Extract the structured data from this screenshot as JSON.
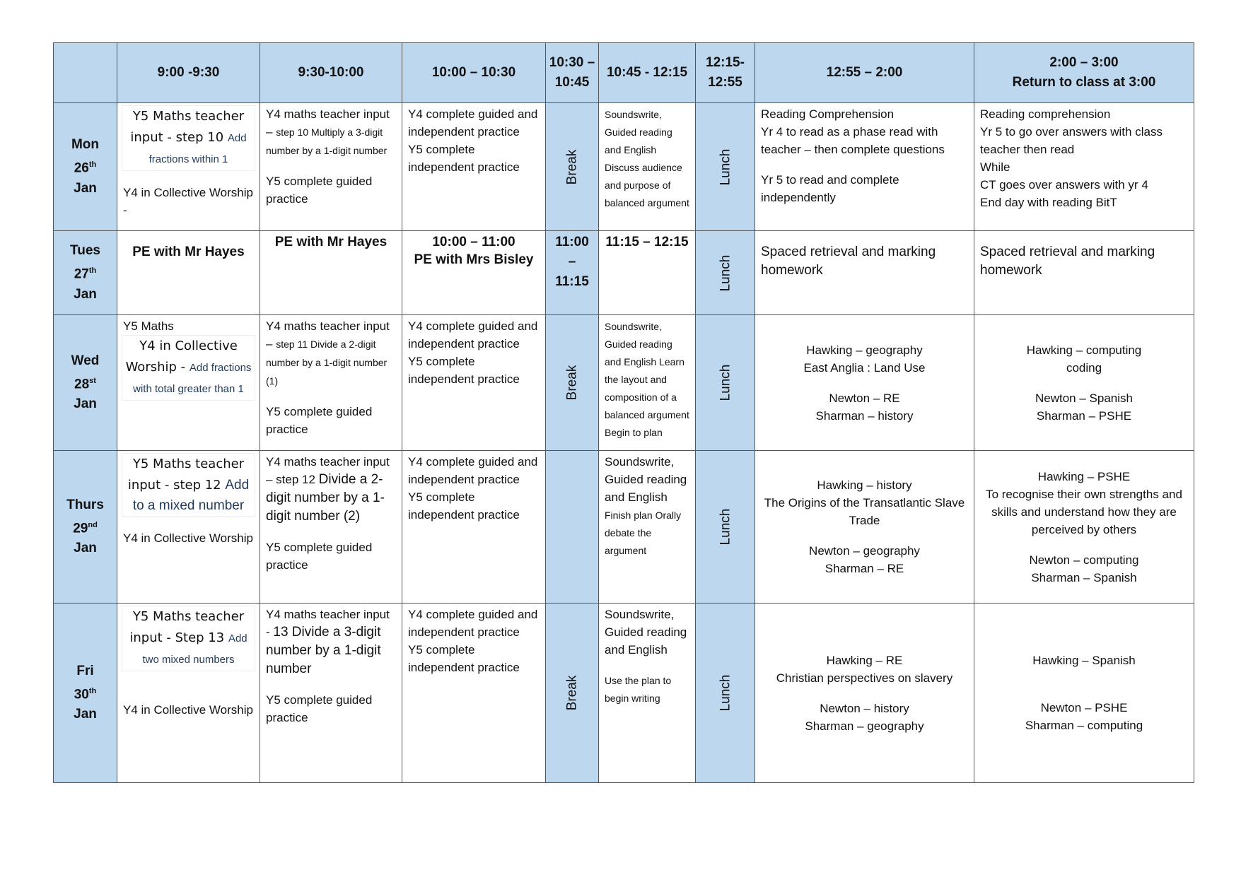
{
  "header": [
    "",
    "9:00 -9:30",
    "9:30-10:00",
    "10:00 – 10:30",
    "10:30 – 10:45",
    "10:45 - 12:15",
    "12:15- 12:55",
    "12:55 – 2:00",
    "2:00 – 3:00\nReturn to class at 3:00"
  ],
  "rows": [
    {
      "day": {
        "name": "Mon",
        "date": "26",
        "suffix": "th",
        "month": "Jan"
      },
      "cells": [
        {
          "blocks": [
            {
              "cls": "box",
              "runs": [
                {
                  "k": "c",
                  "text": "Y5 Maths teacher input - step 10 "
                },
                {
                  "k": "blue",
                  "text": "Add fractions within 1"
                }
              ]
            },
            {
              "cls": "gap",
              "runs": [
                {
                  "k": "n",
                  "text": "Y4 in Collective Worship  -"
                }
              ]
            }
          ]
        },
        {
          "blocks": [
            {
              "runs": [
                {
                  "k": "n",
                  "text": "Y4 maths teacher input – "
                },
                {
                  "k": "s",
                  "text": "step 10 Multiply a 3-digit number by a 1-digit number"
                }
              ]
            },
            {
              "cls": "gap",
              "runs": [
                {
                  "k": "n",
                  "text": "Y5 complete guided practice"
                }
              ]
            }
          ]
        },
        {
          "blocks": [
            {
              "runs": [
                {
                  "k": "n",
                  "text": "Y4 complete guided and independent practice"
                }
              ]
            },
            {
              "runs": [
                {
                  "k": "n",
                  "text": "Y5 complete independent practice"
                }
              ]
            }
          ]
        },
        {
          "band": "Break"
        },
        {
          "blocks": [
            {
              "runs": [
                {
                  "k": "xs",
                  "text": "Soundswrite, Guided reading and English Discuss audience and purpose of balanced argument"
                }
              ]
            }
          ]
        },
        {
          "band": "Lunch"
        },
        {
          "blocks": [
            {
              "runs": [
                {
                  "k": "n",
                  "text": "Reading Comprehension"
                }
              ]
            },
            {
              "runs": [
                {
                  "k": "n",
                  "text": "Yr 4 to read as a phase read with teacher – then complete questions"
                }
              ]
            },
            {
              "cls": "gap",
              "runs": [
                {
                  "k": "n",
                  "text": "Yr 5 to read and complete independently"
                }
              ]
            }
          ]
        },
        {
          "blocks": [
            {
              "runs": [
                {
                  "k": "n",
                  "text": "Reading comprehension"
                }
              ]
            },
            {
              "runs": [
                {
                  "k": "n",
                  "text": "Yr 5 to  go over answers with class teacher then read"
                }
              ]
            },
            {
              "runs": [
                {
                  "k": "n",
                  "text": "While"
                }
              ]
            },
            {
              "runs": [
                {
                  "k": "n",
                  "text": "CT goes over answers with yr 4"
                }
              ]
            },
            {
              "runs": [
                {
                  "k": "n",
                  "text": "End day with reading BitT"
                }
              ]
            }
          ]
        }
      ]
    },
    {
      "day": {
        "name": "Tues",
        "date": "27",
        "suffix": "th",
        "month": "Jan"
      },
      "cells": [
        {
          "blocks": [
            {
              "cls": "center gapt",
              "runs": [
                {
                  "k": "b",
                  "text": "PE with Mr Hayes"
                }
              ]
            }
          ]
        },
        {
          "blocks": [
            {
              "cls": "center",
              "runs": [
                {
                  "k": "b",
                  "text": "PE with Mr Hayes"
                }
              ]
            }
          ]
        },
        {
          "blocks": [
            {
              "cls": "center",
              "runs": [
                {
                  "k": "b",
                  "text": "10:00 – 11:00"
                }
              ]
            },
            {
              "cls": "center",
              "runs": [
                {
                  "k": "b",
                  "text": "PE with Mrs Bisley"
                }
              ]
            }
          ]
        },
        {
          "bandtext": "11:00 – 11:15"
        },
        {
          "blocks": [
            {
              "cls": "center",
              "runs": [
                {
                  "k": "b",
                  "text": "11:15 – 12:15"
                }
              ]
            }
          ]
        },
        {
          "band": "Lunch"
        },
        {
          "blocks": [
            {
              "cls": "gapt",
              "runs": [
                {
                  "k": "l",
                  "text": "Spaced retrieval and marking homework"
                }
              ]
            }
          ]
        },
        {
          "blocks": [
            {
              "cls": "gapt",
              "runs": [
                {
                  "k": "l",
                  "text": "Spaced retrieval and marking homework"
                }
              ]
            }
          ]
        }
      ]
    },
    {
      "day": {
        "name": "Wed",
        "date": "28",
        "suffix": "st",
        "month": "Jan"
      },
      "cells": [
        {
          "blocks": [
            {
              "runs": [
                {
                  "k": "n",
                  "text": "Y5 Maths"
                }
              ]
            },
            {
              "cls": "box",
              "runs": [
                {
                  "k": "c",
                  "text": "Y4 in Collective Worship - "
                },
                {
                  "k": "blue",
                  "text": "Add fractions with total greater than 1"
                }
              ]
            }
          ]
        },
        {
          "blocks": [
            {
              "runs": [
                {
                  "k": "n",
                  "text": "Y4 maths teacher input – "
                },
                {
                  "k": "s",
                  "text": "step 11 Divide a 2-digit number by a 1-digit number (1)"
                }
              ]
            },
            {
              "cls": "gap",
              "runs": [
                {
                  "k": "n",
                  "text": "Y5 complete guided practice"
                }
              ]
            }
          ]
        },
        {
          "blocks": [
            {
              "runs": [
                {
                  "k": "n",
                  "text": "Y4 complete guided and independent practice"
                }
              ]
            },
            {
              "runs": [
                {
                  "k": "n",
                  "text": "Y5 complete independent practice"
                }
              ]
            }
          ]
        },
        {
          "band": "Break"
        },
        {
          "blocks": [
            {
              "runs": [
                {
                  "k": "xs",
                  "text": "Soundswrite, Guided reading and English Learn the layout and composition of a balanced argument Begin to plan"
                }
              ]
            }
          ]
        },
        {
          "band": "Lunch"
        },
        {
          "mid": true,
          "blocks": [
            {
              "cls": "center",
              "runs": [
                {
                  "k": "n",
                  "text": "Hawking – geography"
                }
              ]
            },
            {
              "cls": "center",
              "runs": [
                {
                  "k": "n",
                  "text": "East Anglia : Land Use"
                }
              ]
            },
            {
              "cls": "center gap",
              "runs": [
                {
                  "k": "n",
                  "text": "Newton – RE"
                }
              ]
            },
            {
              "cls": "center",
              "runs": [
                {
                  "k": "n",
                  "text": "Sharman – history"
                }
              ]
            }
          ]
        },
        {
          "mid": true,
          "blocks": [
            {
              "cls": "center",
              "runs": [
                {
                  "k": "n",
                  "text": "Hawking – computing"
                }
              ]
            },
            {
              "cls": "center",
              "runs": [
                {
                  "k": "n",
                  "text": "coding"
                }
              ]
            },
            {
              "cls": "center gap",
              "runs": [
                {
                  "k": "n",
                  "text": "Newton – Spanish"
                }
              ]
            },
            {
              "cls": "center",
              "runs": [
                {
                  "k": "n",
                  "text": "Sharman – PSHE"
                }
              ]
            }
          ]
        }
      ]
    },
    {
      "day": {
        "name": "Thurs",
        "date": "29",
        "suffix": "nd",
        "month": "Jan"
      },
      "cells": [
        {
          "blocks": [
            {
              "cls": "box",
              "runs": [
                {
                  "k": "c",
                  "text": "Y5 Maths teacher input - step 12 "
                },
                {
                  "k": "blueL",
                  "text": "Add to a mixed number"
                }
              ]
            },
            {
              "cls": "gap",
              "runs": [
                {
                  "k": "n",
                  "text": "Y4 in Collective Worship"
                }
              ]
            }
          ]
        },
        {
          "blocks": [
            {
              "runs": [
                {
                  "k": "n",
                  "text": "Y4 maths teacher input – step 12 "
                },
                {
                  "k": "l",
                  "text": "Divide a 2-digit number by a 1-digit number (2)"
                }
              ]
            },
            {
              "cls": "gap",
              "runs": [
                {
                  "k": "n",
                  "text": "Y5 complete guided practice"
                }
              ]
            }
          ]
        },
        {
          "blocks": [
            {
              "runs": [
                {
                  "k": "n",
                  "text": "Y4 complete guided and independent practice"
                }
              ]
            },
            {
              "runs": [
                {
                  "k": "n",
                  "text": "Y5 complete independent practice"
                }
              ]
            }
          ]
        },
        {
          "band": ""
        },
        {
          "blocks": [
            {
              "runs": [
                {
                  "k": "n",
                  "text": "Soundswrite, Guided reading and English"
                }
              ]
            },
            {
              "runs": [
                {
                  "k": "xs",
                  "text": "Finish plan Orally debate the argument"
                }
              ]
            }
          ]
        },
        {
          "band": "Lunch"
        },
        {
          "mid": true,
          "blocks": [
            {
              "cls": "center",
              "runs": [
                {
                  "k": "n",
                  "text": "Hawking – history"
                }
              ]
            },
            {
              "cls": "center",
              "runs": [
                {
                  "k": "n",
                  "text": "The Origins of the Transatlantic Slave Trade"
                }
              ]
            },
            {
              "cls": "center gap",
              "runs": [
                {
                  "k": "n",
                  "text": "Newton – geography"
                }
              ]
            },
            {
              "cls": "center",
              "runs": [
                {
                  "k": "n",
                  "text": "Sharman – RE"
                }
              ]
            }
          ]
        },
        {
          "mid": true,
          "blocks": [
            {
              "cls": "center",
              "runs": [
                {
                  "k": "n",
                  "text": "Hawking – PSHE"
                }
              ]
            },
            {
              "cls": "center",
              "runs": [
                {
                  "k": "n",
                  "text": "To recognise their own strengths and skills and understand how they are perceived by others"
                }
              ]
            },
            {
              "cls": "center gap",
              "runs": [
                {
                  "k": "n",
                  "text": "Newton – computing"
                }
              ]
            },
            {
              "cls": "center",
              "runs": [
                {
                  "k": "n",
                  "text": "Sharman – Spanish"
                }
              ]
            }
          ]
        }
      ]
    },
    {
      "day": {
        "name": "Fri",
        "date": "30",
        "suffix": "th",
        "month": "Jan"
      },
      "cells": [
        {
          "blocks": [
            {
              "cls": "box",
              "runs": [
                {
                  "k": "c",
                  "text": "Y5 Maths teacher input -  Step 13 "
                },
                {
                  "k": "blue",
                  "text": "Add two mixed numbers"
                }
              ]
            },
            {
              "cls": "gap2",
              "runs": [
                {
                  "k": "n",
                  "text": "Y4 in Collective Worship"
                }
              ]
            }
          ]
        },
        {
          "blocks": [
            {
              "runs": [
                {
                  "k": "n",
                  "text": "Y4 maths teacher input - "
                },
                {
                  "k": "l",
                  "text": "13 Divide a 3-digit number by a 1-digit number"
                }
              ]
            },
            {
              "cls": "gap",
              "runs": [
                {
                  "k": "n",
                  "text": "Y5 complete guided practice"
                }
              ]
            }
          ]
        },
        {
          "blocks": [
            {
              "runs": [
                {
                  "k": "n",
                  "text": "Y4 complete guided and independent practice"
                }
              ]
            },
            {
              "runs": [
                {
                  "k": "n",
                  "text": "Y5 complete independent practice"
                }
              ]
            }
          ]
        },
        {
          "band": "Break"
        },
        {
          "blocks": [
            {
              "runs": [
                {
                  "k": "n",
                  "text": "Soundswrite, Guided reading and English"
                }
              ]
            },
            {
              "cls": "gap",
              "runs": [
                {
                  "k": "xs",
                  "text": "Use the plan to begin writing"
                }
              ]
            }
          ]
        },
        {
          "band": "Lunch"
        },
        {
          "mid": true,
          "blocks": [
            {
              "cls": "center",
              "runs": [
                {
                  "k": "n",
                  "text": "Hawking – RE"
                }
              ]
            },
            {
              "cls": "center",
              "runs": [
                {
                  "k": "n",
                  "text": "Christian perspectives on slavery"
                }
              ]
            },
            {
              "cls": "center gap",
              "runs": [
                {
                  "k": "n",
                  "text": "Newton – history"
                }
              ]
            },
            {
              "cls": "center",
              "runs": [
                {
                  "k": "n",
                  "text": "Sharman – geography"
                }
              ]
            }
          ]
        },
        {
          "mid": true,
          "blocks": [
            {
              "cls": "center",
              "runs": [
                {
                  "k": "n",
                  "text": "Hawking – Spanish"
                }
              ]
            },
            {
              "cls": "center gap2",
              "runs": [
                {
                  "k": "n",
                  "text": "Newton – PSHE"
                }
              ]
            },
            {
              "cls": "center",
              "runs": [
                {
                  "k": "n",
                  "text": "Sharman – computing"
                }
              ]
            }
          ]
        }
      ]
    }
  ],
  "colors": {
    "header_bg": "#bdd7ee",
    "border": "#555555",
    "link_text": "#1f3a5a"
  }
}
